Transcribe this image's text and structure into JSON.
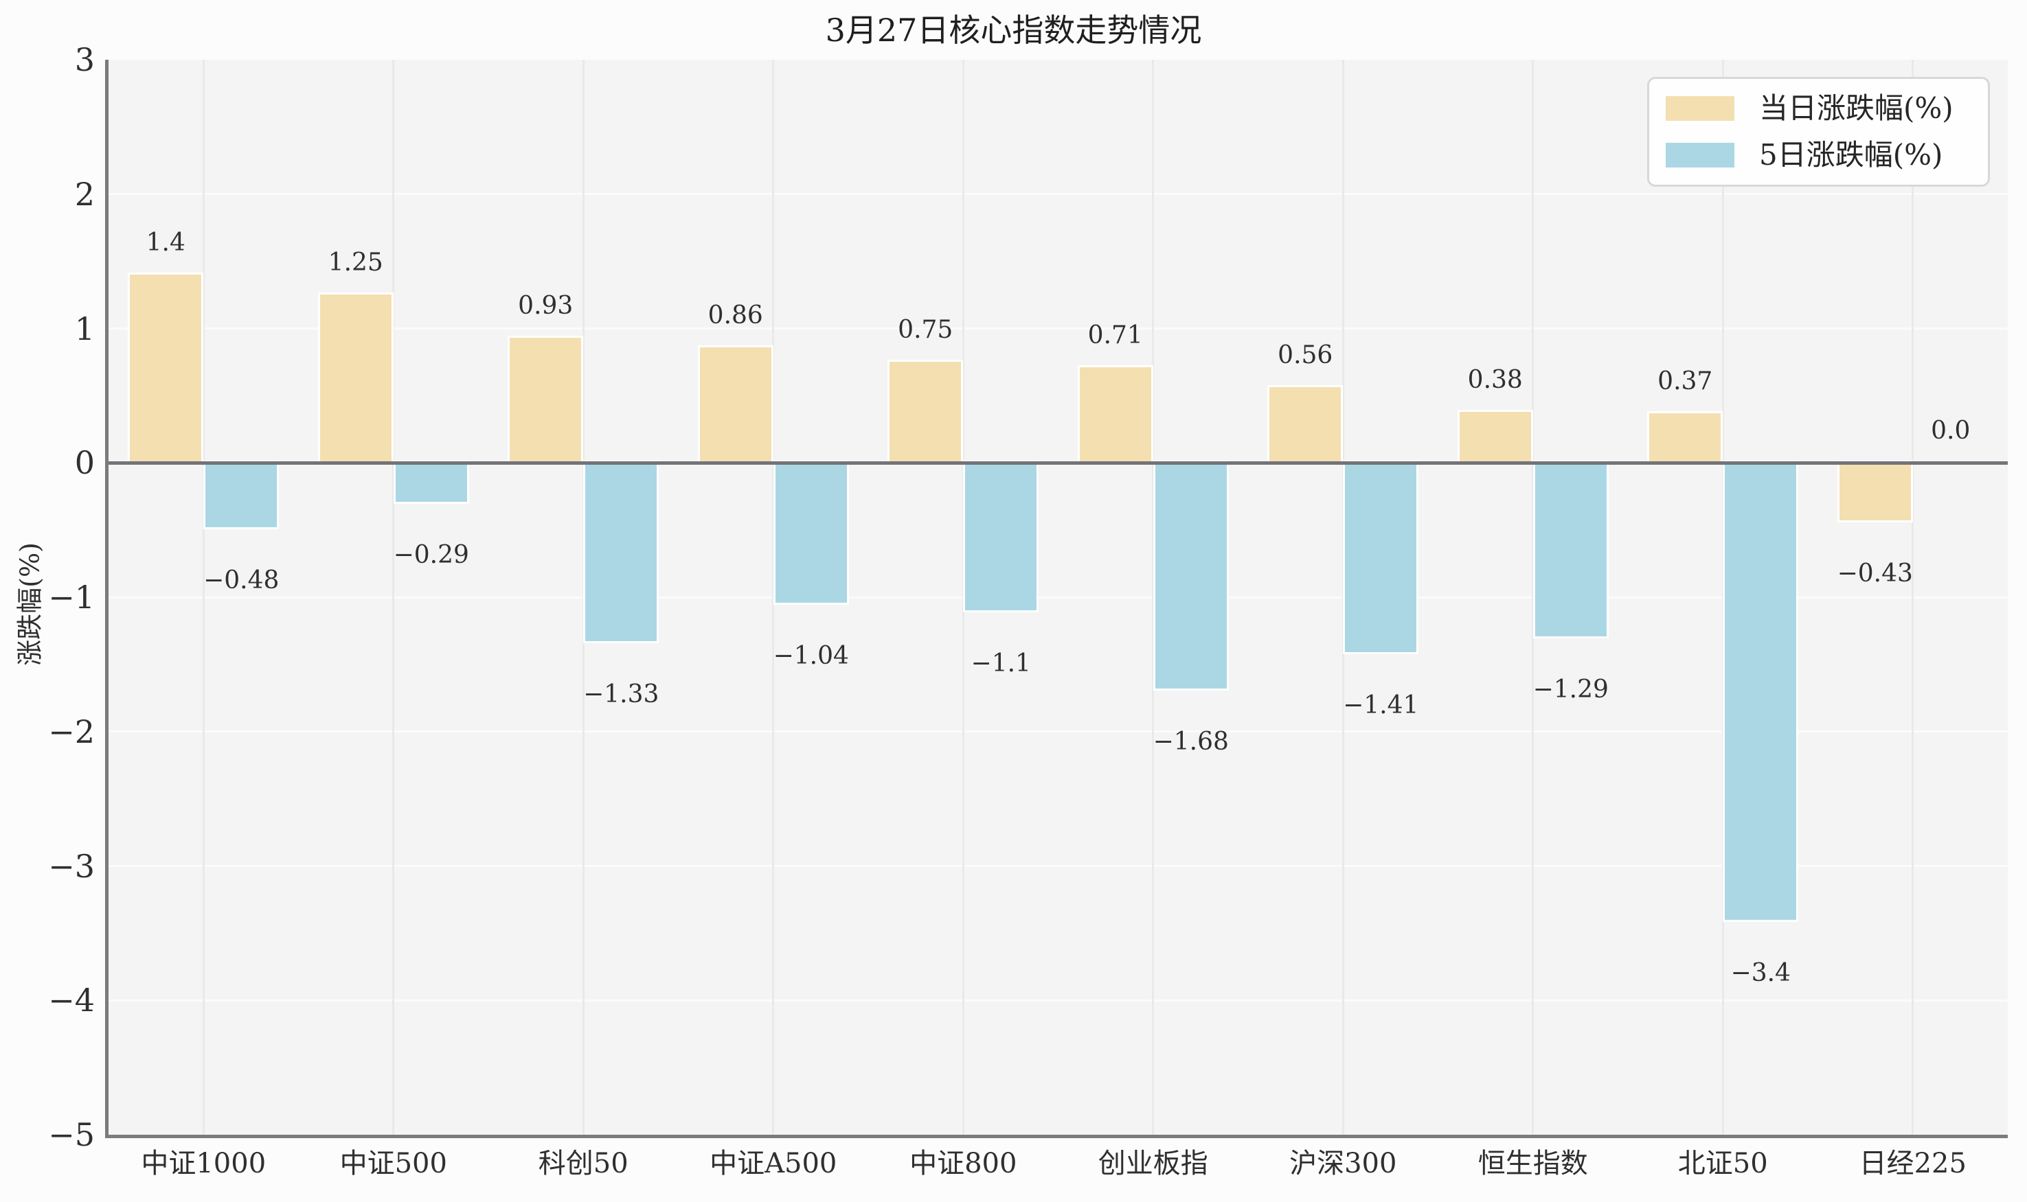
{
  "figure": {
    "background": "#fcfcfc",
    "plot_background": "#f4f4f4",
    "zero_line_color": "#737378",
    "spine_color": "#7b7b7b"
  },
  "chart_data": {
    "type": "bar",
    "title": "3月27日核心指数走势情况",
    "categories": [
      "中证1000",
      "中证500",
      "科创50",
      "中证A500",
      "中证800",
      "创业板指",
      "沪深300",
      "恒生指数",
      "北证50",
      "日经225"
    ],
    "series": [
      {
        "name": "当日涨跌幅(%)",
        "color": "#f4dfb1",
        "values": [
          1.4,
          1.25,
          0.93,
          0.86,
          0.75,
          0.71,
          0.56,
          0.38,
          0.37,
          -0.43
        ]
      },
      {
        "name": "5日涨跌幅(%)",
        "color": "#abd7e4",
        "values": [
          -0.48,
          -0.29,
          -1.33,
          -1.04,
          -1.1,
          -1.68,
          -1.41,
          -1.29,
          -3.4,
          0.0
        ]
      }
    ],
    "xlabel": "",
    "ylabel": "涨跌幅(%)",
    "ylim": [
      -5,
      3
    ],
    "yticks": [
      3,
      2,
      1,
      0,
      -1,
      -2,
      -3,
      -4,
      -5
    ],
    "grid": true,
    "bar_value_labels": true,
    "legend_position": "upper right"
  }
}
